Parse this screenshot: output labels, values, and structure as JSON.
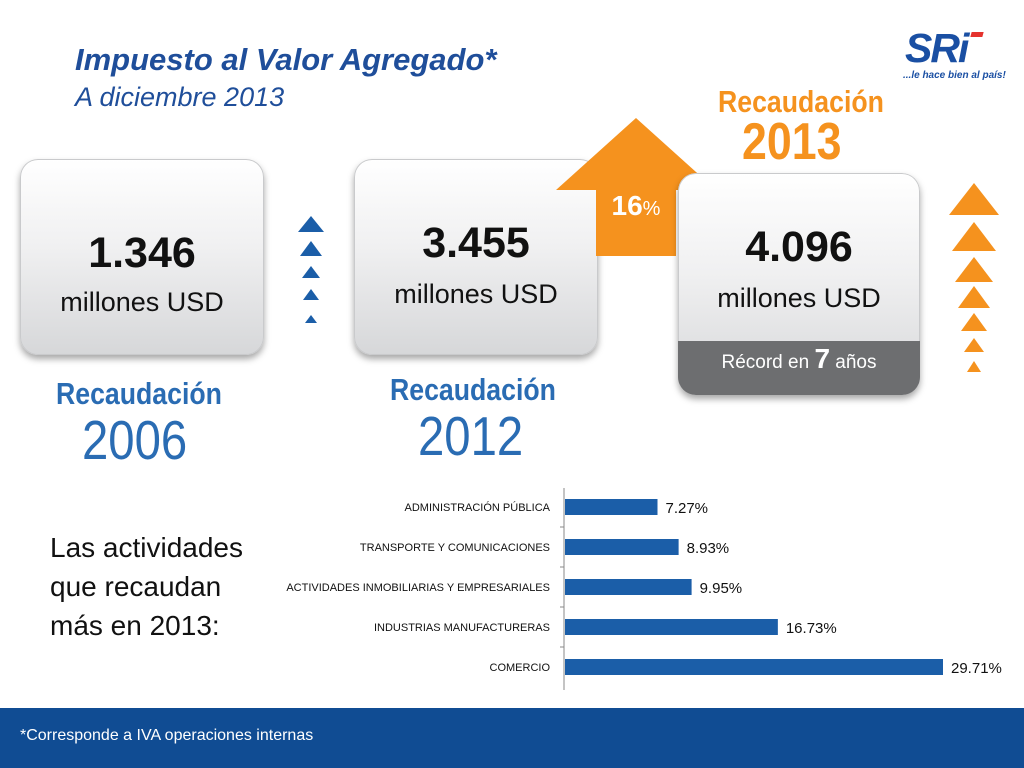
{
  "header": {
    "title": "Impuesto al Valor Agregado*",
    "subtitle": "A diciembre 2013"
  },
  "logo": {
    "text": "SRi",
    "tagline": "...le hace bien al país!"
  },
  "cards": [
    {
      "value": "1.346",
      "unit": "millones USD",
      "label_word": "Recaudación",
      "label_year": "2006"
    },
    {
      "value": "3.455",
      "unit": "millones USD",
      "label_word": "Recaudación",
      "label_year": "2012"
    },
    {
      "value": "4.096",
      "unit": "millones USD",
      "label_word": "Recaudación",
      "label_year": "2013",
      "record_prefix": "Récord en",
      "record_number": "7",
      "record_suffix": "años"
    }
  ],
  "growth": {
    "value": "16",
    "unit": "%"
  },
  "colors": {
    "brand_blue": "#1f4e9a",
    "label_blue": "#2a6cb3",
    "orange": "#f5921e",
    "bar_blue": "#1b5ea8",
    "footer_blue": "#104c93"
  },
  "activities_text": "Las actividades que recaudan más en 2013:",
  "chart_data": {
    "type": "bar",
    "orientation": "horizontal",
    "categories": [
      "ADMINISTRACIÓN PÚBLICA",
      "TRANSPORTE Y COMUNICACIONES",
      "ACTIVIDADES INMOBILIARIAS Y EMPRESARIALES",
      "INDUSTRIAS MANUFACTURERAS",
      "COMERCIO"
    ],
    "values": [
      7.27,
      8.93,
      9.95,
      16.73,
      29.71
    ],
    "value_labels": [
      "7.27%",
      "8.93%",
      "9.95%",
      "16.73%",
      "29.71%"
    ],
    "xlim": [
      0,
      29.71
    ],
    "grid": false,
    "legend": "none"
  },
  "footer": {
    "note": "*Corresponde a IVA operaciones internas"
  }
}
